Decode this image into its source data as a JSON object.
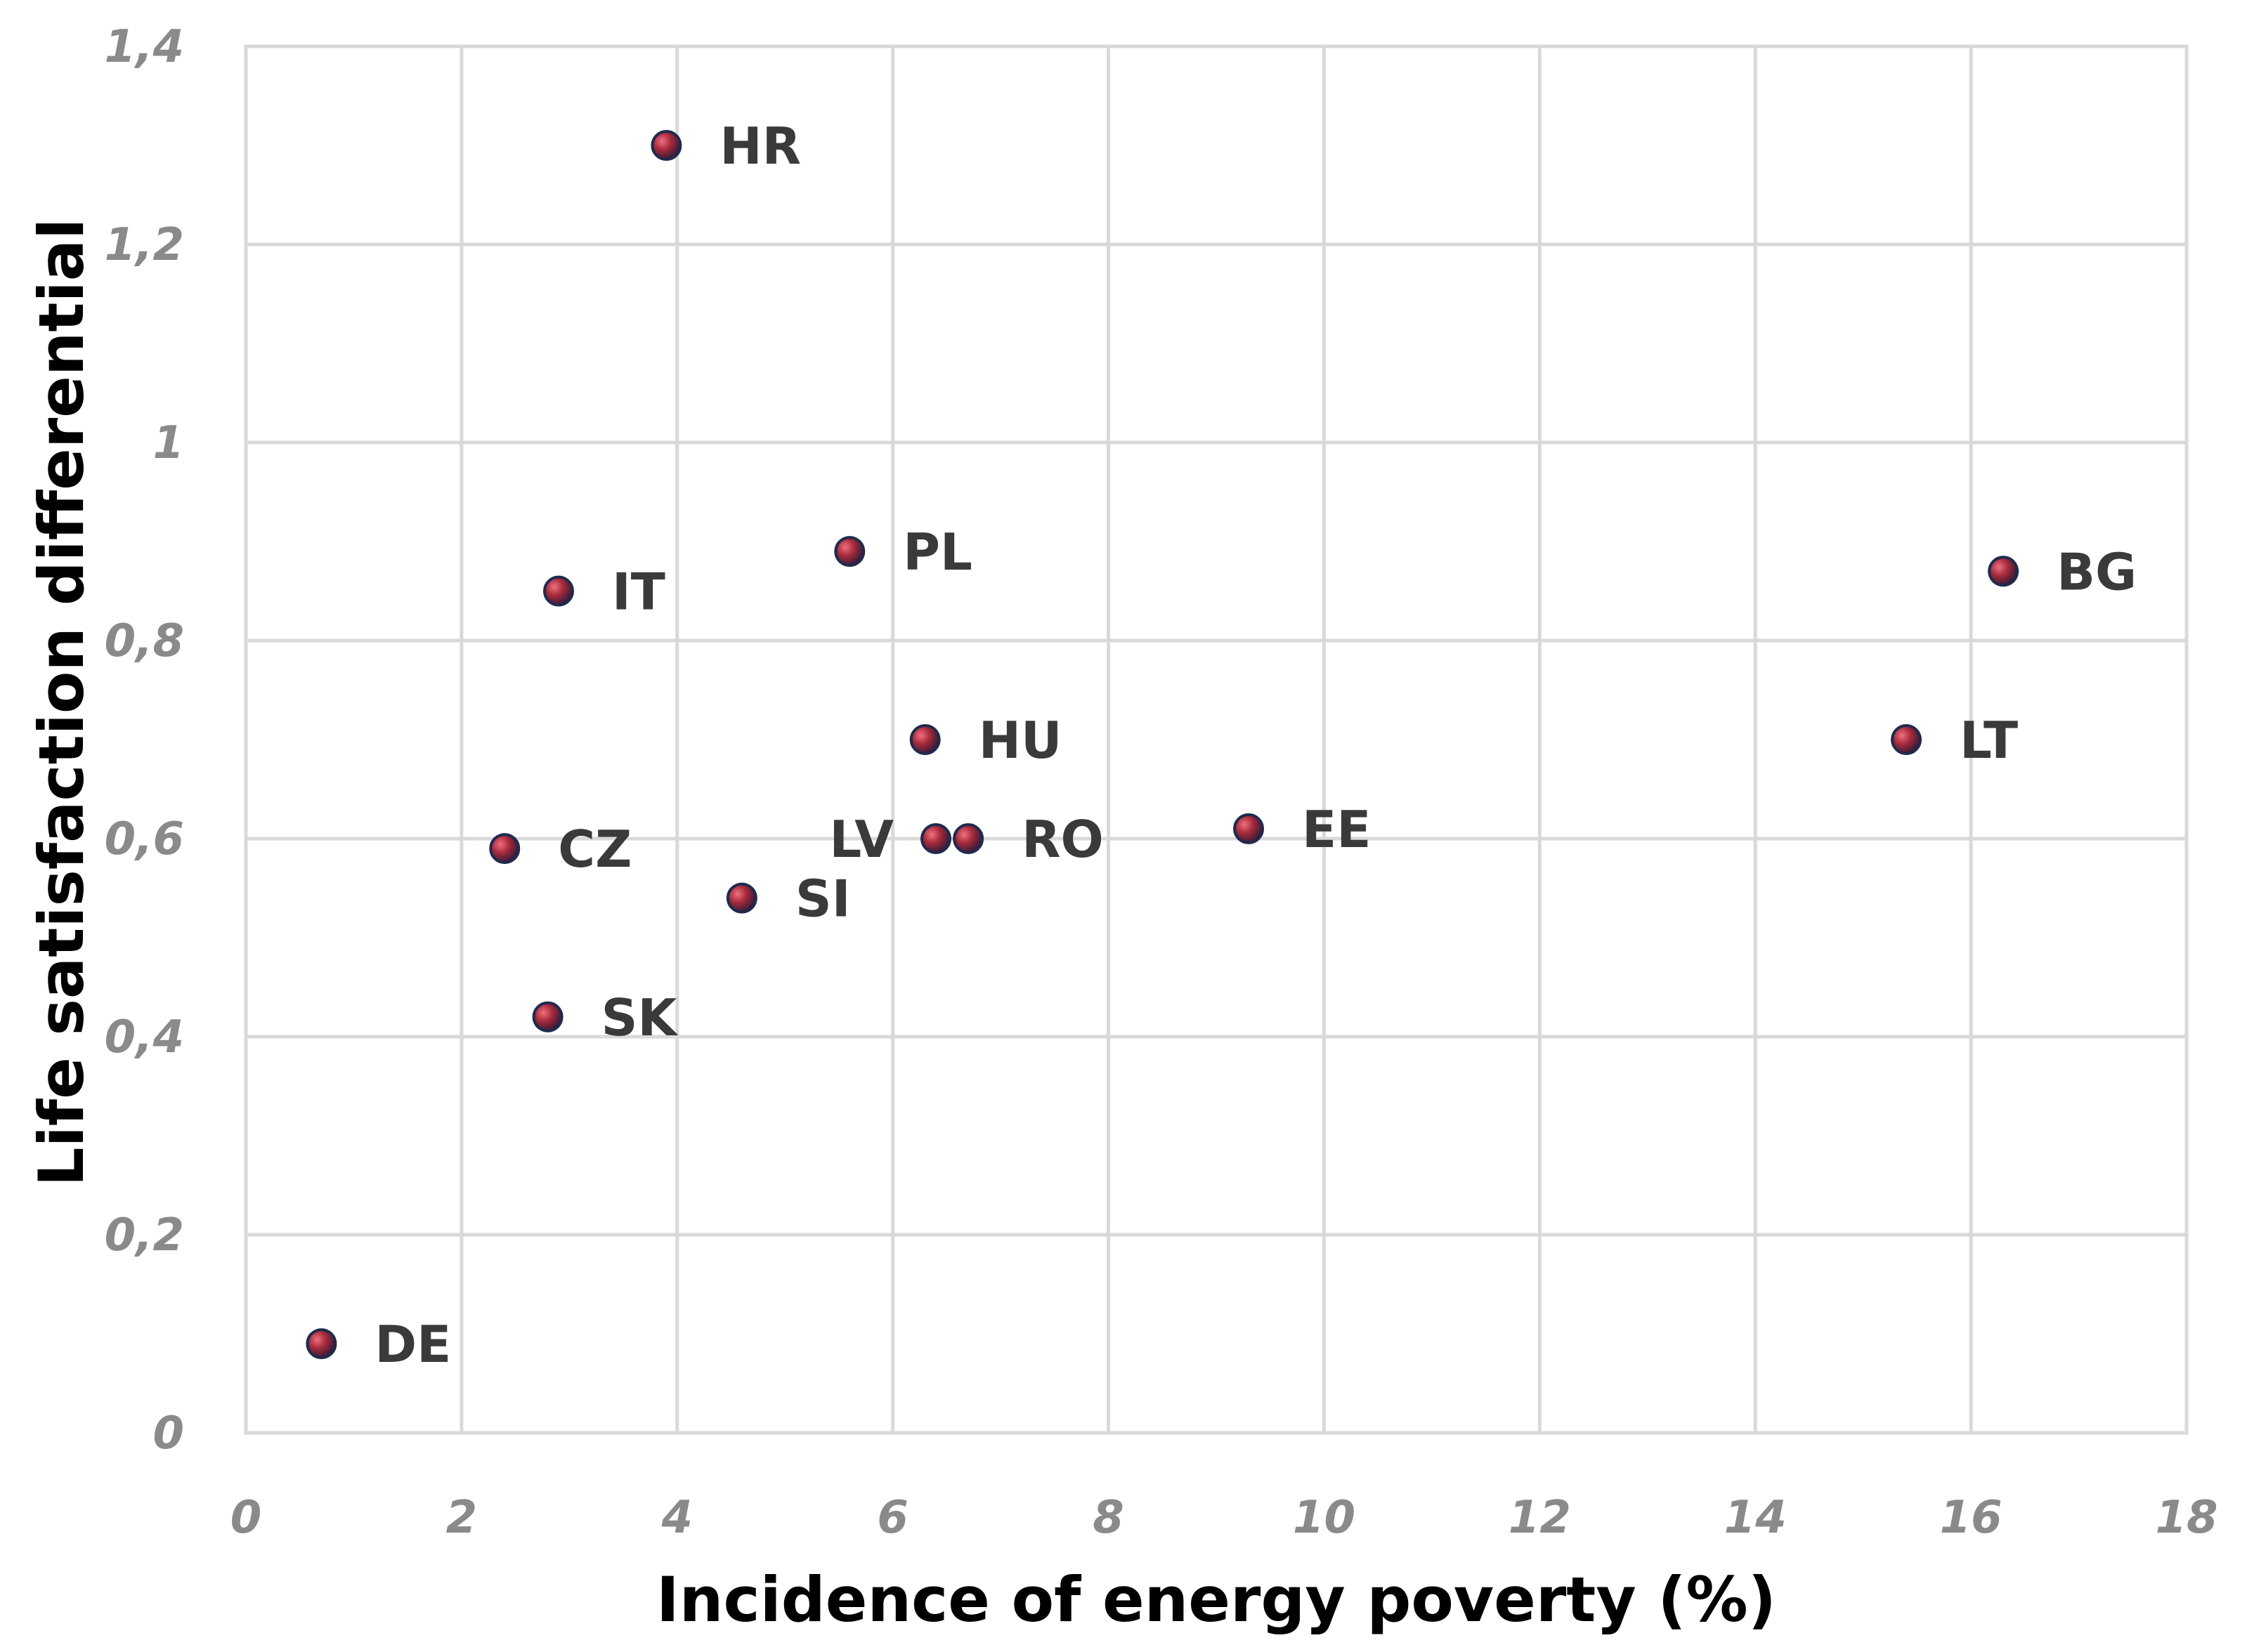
{
  "chart_data": {
    "type": "scatter",
    "title": "",
    "xlabel": "Incidence of energy poverty (%)",
    "ylabel": "Life satisfaction differential",
    "xlim": [
      0,
      18
    ],
    "ylim": [
      0,
      1.4
    ],
    "grid": true,
    "x_ticks": [
      {
        "value": 0,
        "label": "0"
      },
      {
        "value": 2,
        "label": "2"
      },
      {
        "value": 4,
        "label": "4"
      },
      {
        "value": 6,
        "label": "6"
      },
      {
        "value": 8,
        "label": "8"
      },
      {
        "value": 10,
        "label": "10"
      },
      {
        "value": 12,
        "label": "12"
      },
      {
        "value": 14,
        "label": "14"
      },
      {
        "value": 16,
        "label": "16"
      },
      {
        "value": 18,
        "label": "18"
      }
    ],
    "y_ticks": [
      {
        "value": 0,
        "label": "0"
      },
      {
        "value": 0.2,
        "label": "0,2"
      },
      {
        "value": 0.4,
        "label": "0,4"
      },
      {
        "value": 0.6,
        "label": "0,6"
      },
      {
        "value": 0.8,
        "label": "0,8"
      },
      {
        "value": 1.0,
        "label": "1"
      },
      {
        "value": 1.2,
        "label": "1,2"
      },
      {
        "value": 1.4,
        "label": "1,4"
      }
    ],
    "points": [
      {
        "label": "HR",
        "x": 3.9,
        "y": 1.3,
        "label_side": "right"
      },
      {
        "label": "PL",
        "x": 5.6,
        "y": 0.89,
        "label_side": "right"
      },
      {
        "label": "IT",
        "x": 2.9,
        "y": 0.85,
        "label_side": "right"
      },
      {
        "label": "BG",
        "x": 16.3,
        "y": 0.87,
        "label_side": "right"
      },
      {
        "label": "HU",
        "x": 6.3,
        "y": 0.7,
        "label_side": "right"
      },
      {
        "label": "LT",
        "x": 15.4,
        "y": 0.7,
        "label_side": "right"
      },
      {
        "label": "LV",
        "x": 6.4,
        "y": 0.6,
        "label_side": "left"
      },
      {
        "label": "RO",
        "x": 6.7,
        "y": 0.6,
        "label_side": "right"
      },
      {
        "label": "EE",
        "x": 9.3,
        "y": 0.61,
        "label_side": "right"
      },
      {
        "label": "CZ",
        "x": 2.4,
        "y": 0.59,
        "label_side": "right"
      },
      {
        "label": "SI",
        "x": 4.6,
        "y": 0.54,
        "label_side": "right"
      },
      {
        "label": "SK",
        "x": 2.8,
        "y": 0.42,
        "label_side": "right"
      },
      {
        "label": "DE",
        "x": 0.7,
        "y": 0.09,
        "label_side": "right"
      }
    ]
  },
  "colors": {
    "point_fill": "#8b2332",
    "point_highlight": "#e06070",
    "point_stroke": "#1f2a4d",
    "grid": "#d9d9d9",
    "tick_text": "#8a8a8a",
    "label_text": "#3a3a3a",
    "axis_title": "#000000"
  }
}
